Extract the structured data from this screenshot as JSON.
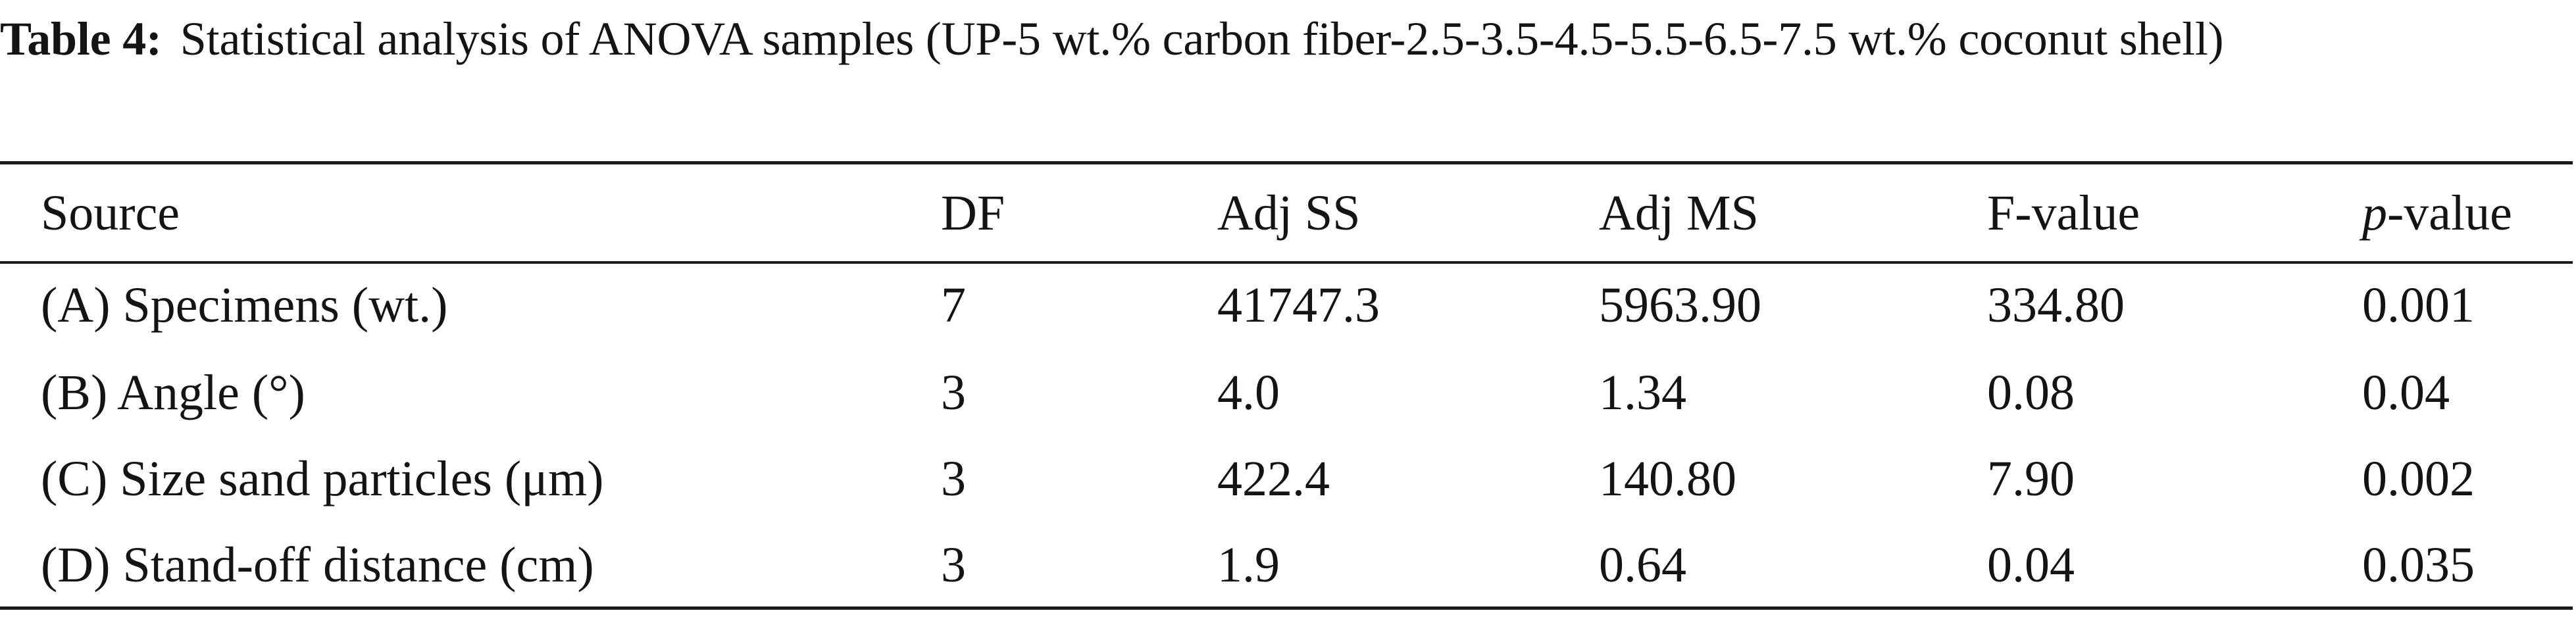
{
  "caption": {
    "label": "Table 4:",
    "text": "Statistical analysis of ANOVA samples (UP-5 wt.% carbon fiber-2.5-3.5-4.5-5.5-6.5-7.5 wt.% coconut shell)"
  },
  "table": {
    "headers": {
      "source": "Source",
      "df": "DF",
      "adj_ss": "Adj SS",
      "adj_ms": "Adj MS",
      "f_value": "F-value",
      "p_value_italic": "p",
      "p_value_rest": "-value"
    },
    "rows": [
      {
        "source": "(A) Specimens (wt.)",
        "df": "7",
        "adj_ss": "41747.3",
        "adj_ms": "5963.90",
        "f_value": "334.80",
        "p_value": "0.001"
      },
      {
        "source": "(B) Angle (°)",
        "df": "3",
        "adj_ss": "4.0",
        "adj_ms": "1.34",
        "f_value": "0.08",
        "p_value": "0.04"
      },
      {
        "source": "(C) Size sand particles (μm)",
        "df": "3",
        "adj_ss": "422.4",
        "adj_ms": "140.80",
        "f_value": "7.90",
        "p_value": "0.002"
      },
      {
        "source": "(D) Stand-off distance (cm)",
        "df": "3",
        "adj_ss": "1.9",
        "adj_ms": "0.64",
        "f_value": "0.04",
        "p_value": "0.035"
      }
    ]
  }
}
